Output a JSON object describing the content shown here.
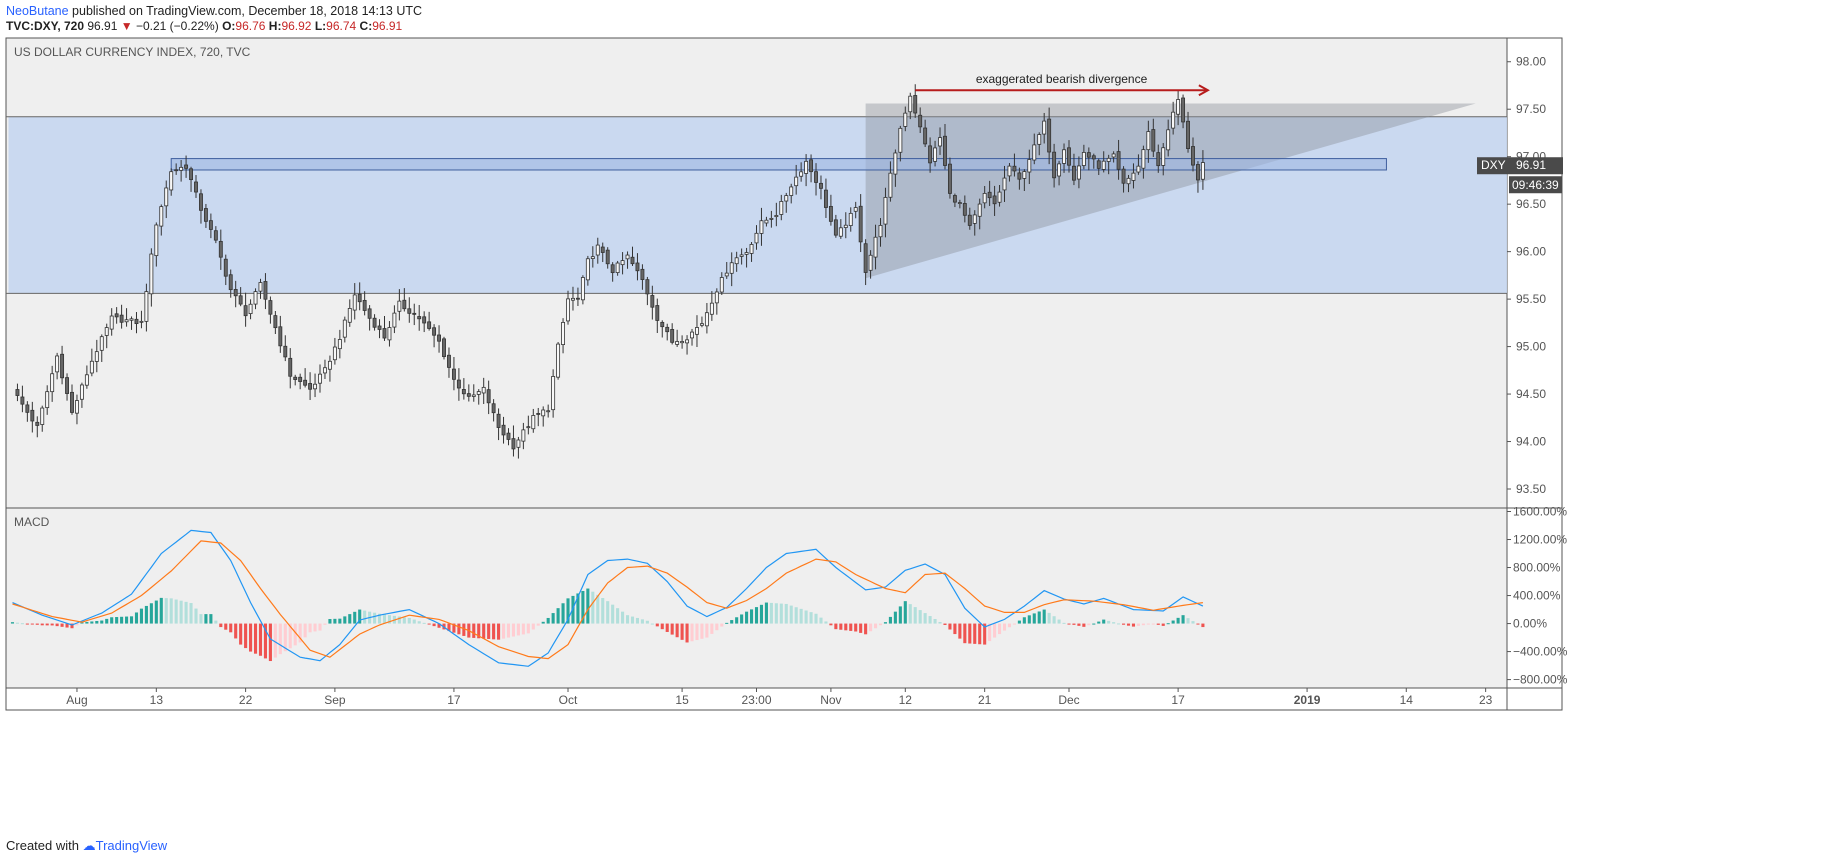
{
  "header": {
    "author": "NeoButane",
    "published_text": "published on TradingView.com, December 18, 2018 14:13 UTC",
    "symbol": "TVC:DXY, 720",
    "last": "96.91",
    "change": "−0.21 (−0.22%)",
    "o_label": "O:",
    "o_value": "96.76",
    "h_label": "H:",
    "h_value": "96.92",
    "l_label": "L:",
    "l_value": "96.74",
    "c_label": "C:",
    "c_value": "96.91"
  },
  "footer": {
    "created_with": "Created with",
    "brand": "TradingView"
  },
  "colors": {
    "background": "#efefef",
    "range_band": "#c5d6ef",
    "up_candle": "#f8f8f8",
    "down_candle": "#666666",
    "macd_line": "#2196f3",
    "signal_line": "#ff7a1a",
    "hist_pos_strong": "#26a69a",
    "hist_pos_weak": "#b2dfdb",
    "hist_neg_strong": "#ef5350",
    "hist_neg_weak": "#ffcdd2",
    "arrow": "#b71c1c"
  },
  "chart_data": [
    {
      "type": "candlestick",
      "title": "US DOLLAR CURRENCY INDEX, 720, TVC",
      "ylim": [
        93.3,
        98.25
      ],
      "y_ticks": [
        93.5,
        94.0,
        94.5,
        95.0,
        95.5,
        96.0,
        96.5,
        97.0,
        97.5,
        98.0
      ],
      "y_tick_labels": [
        "93.50",
        "94.00",
        "94.50",
        "95.00",
        "95.50",
        "96.00",
        "96.50",
        "97.00",
        "97.50",
        "98.00"
      ],
      "x_ticks": [
        {
          "label": "Aug",
          "i": 13
        },
        {
          "label": "13",
          "i": 29
        },
        {
          "label": "22",
          "i": 47
        },
        {
          "label": "Sep",
          "i": 65
        },
        {
          "label": "17",
          "i": 89
        },
        {
          "label": "Oct",
          "i": 112
        },
        {
          "label": "15",
          "i": 135
        },
        {
          "label": "23:00",
          "i": 150
        },
        {
          "label": "Nov",
          "i": 165
        },
        {
          "label": "12",
          "i": 180
        },
        {
          "label": "21",
          "i": 196
        },
        {
          "label": "Dec",
          "i": 213
        },
        {
          "label": "17",
          "i": 235
        },
        {
          "label": "2019",
          "i": 261,
          "bold": true
        },
        {
          "label": "14",
          "i": 281
        },
        {
          "label": "23",
          "i": 297
        }
      ],
      "x_count": 301,
      "close_anchors": [
        [
          0,
          94.55
        ],
        [
          5,
          94.15
        ],
        [
          9,
          94.9
        ],
        [
          12,
          94.3
        ],
        [
          16,
          94.85
        ],
        [
          20,
          95.3
        ],
        [
          26,
          95.25
        ],
        [
          29,
          96.3
        ],
        [
          32,
          96.85
        ],
        [
          35,
          96.9
        ],
        [
          38,
          96.45
        ],
        [
          41,
          96.1
        ],
        [
          44,
          95.6
        ],
        [
          47,
          95.35
        ],
        [
          50,
          95.65
        ],
        [
          53,
          95.2
        ],
        [
          56,
          94.7
        ],
        [
          60,
          94.55
        ],
        [
          63,
          94.75
        ],
        [
          66,
          95.1
        ],
        [
          69,
          95.55
        ],
        [
          72,
          95.3
        ],
        [
          75,
          95.1
        ],
        [
          78,
          95.45
        ],
        [
          82,
          95.3
        ],
        [
          86,
          95.05
        ],
        [
          89,
          94.65
        ],
        [
          92,
          94.45
        ],
        [
          95,
          94.55
        ],
        [
          98,
          94.15
        ],
        [
          101,
          93.95
        ],
        [
          105,
          94.25
        ],
        [
          108,
          94.35
        ],
        [
          110,
          95.0
        ],
        [
          112,
          95.5
        ],
        [
          114,
          95.5
        ],
        [
          116,
          95.9
        ],
        [
          118,
          96.05
        ],
        [
          121,
          95.8
        ],
        [
          124,
          95.95
        ],
        [
          127,
          95.7
        ],
        [
          130,
          95.3
        ],
        [
          133,
          95.05
        ],
        [
          136,
          95.1
        ],
        [
          139,
          95.25
        ],
        [
          142,
          95.6
        ],
        [
          145,
          95.9
        ],
        [
          148,
          96.0
        ],
        [
          151,
          96.3
        ],
        [
          154,
          96.4
        ],
        [
          157,
          96.7
        ],
        [
          160,
          96.95
        ],
        [
          163,
          96.65
        ],
        [
          166,
          96.15
        ],
        [
          170,
          96.45
        ],
        [
          172,
          95.8
        ],
        [
          175,
          96.3
        ],
        [
          177,
          96.8
        ],
        [
          179,
          97.3
        ],
        [
          181,
          97.65
        ],
        [
          183,
          97.3
        ],
        [
          185,
          96.95
        ],
        [
          187,
          97.2
        ],
        [
          189,
          96.6
        ],
        [
          191,
          96.5
        ],
        [
          193,
          96.25
        ],
        [
          196,
          96.6
        ],
        [
          198,
          96.5
        ],
        [
          201,
          96.9
        ],
        [
          203,
          96.75
        ],
        [
          206,
          97.1
        ],
        [
          208,
          97.35
        ],
        [
          210,
          96.8
        ],
        [
          212,
          97.1
        ],
        [
          214,
          96.75
        ],
        [
          216,
          97.05
        ],
        [
          219,
          96.9
        ],
        [
          222,
          97.0
        ],
        [
          224,
          96.7
        ],
        [
          227,
          96.9
        ],
        [
          229,
          97.25
        ],
        [
          231,
          96.9
        ],
        [
          233,
          97.3
        ],
        [
          235,
          97.6
        ],
        [
          237,
          97.1
        ],
        [
          239,
          96.75
        ],
        [
          240,
          96.91
        ]
      ],
      "range_band": {
        "top": 97.42,
        "bottom": 95.56,
        "i_start": 0,
        "i_end": 301
      },
      "resistance_box": {
        "top": 96.98,
        "bottom": 96.86,
        "i_start": 32,
        "i_end": 277
      },
      "triangle": {
        "points": [
          [
            172,
            97.56
          ],
          [
            295,
            97.56
          ],
          [
            172,
            95.72
          ]
        ]
      },
      "arrow": {
        "i_start": 182,
        "i_end": 241,
        "y": 97.7,
        "label": "exaggerated bearish divergence"
      },
      "last_price": {
        "symbol": "DXY",
        "value": "96.91",
        "countdown": "09:46:39"
      }
    },
    {
      "type": "macd",
      "title": "MACD",
      "ylim": [
        -920,
        1650
      ],
      "y_ticks": [
        -800,
        -400,
        0,
        400,
        800,
        1200,
        1600
      ],
      "y_tick_labels": [
        "−800.00%",
        "−400.00%",
        "0.00%",
        "400.00%",
        "800.00%",
        "1200.00%",
        "1600.00%"
      ],
      "macd_anchors": [
        [
          0,
          300
        ],
        [
          6,
          120
        ],
        [
          12,
          -20
        ],
        [
          18,
          150
        ],
        [
          24,
          420
        ],
        [
          30,
          1000
        ],
        [
          36,
          1330
        ],
        [
          40,
          1300
        ],
        [
          44,
          900
        ],
        [
          48,
          300
        ],
        [
          52,
          -220
        ],
        [
          58,
          -480
        ],
        [
          62,
          -530
        ],
        [
          66,
          -300
        ],
        [
          70,
          50
        ],
        [
          74,
          120
        ],
        [
          80,
          200
        ],
        [
          86,
          0
        ],
        [
          92,
          -300
        ],
        [
          98,
          -560
        ],
        [
          104,
          -610
        ],
        [
          108,
          -420
        ],
        [
          112,
          60
        ],
        [
          116,
          700
        ],
        [
          120,
          900
        ],
        [
          124,
          920
        ],
        [
          128,
          860
        ],
        [
          132,
          600
        ],
        [
          136,
          250
        ],
        [
          140,
          100
        ],
        [
          144,
          230
        ],
        [
          148,
          500
        ],
        [
          152,
          800
        ],
        [
          156,
          1000
        ],
        [
          162,
          1060
        ],
        [
          166,
          800
        ],
        [
          172,
          480
        ],
        [
          176,
          520
        ],
        [
          180,
          760
        ],
        [
          184,
          850
        ],
        [
          188,
          700
        ],
        [
          192,
          220
        ],
        [
          196,
          -50
        ],
        [
          200,
          60
        ],
        [
          204,
          250
        ],
        [
          208,
          470
        ],
        [
          212,
          350
        ],
        [
          216,
          280
        ],
        [
          220,
          360
        ],
        [
          226,
          200
        ],
        [
          232,
          180
        ],
        [
          236,
          380
        ],
        [
          240,
          250
        ]
      ],
      "signal_anchors": [
        [
          0,
          280
        ],
        [
          8,
          100
        ],
        [
          14,
          20
        ],
        [
          20,
          150
        ],
        [
          26,
          400
        ],
        [
          32,
          750
        ],
        [
          38,
          1180
        ],
        [
          42,
          1150
        ],
        [
          46,
          900
        ],
        [
          50,
          500
        ],
        [
          54,
          130
        ],
        [
          60,
          -380
        ],
        [
          64,
          -480
        ],
        [
          70,
          -150
        ],
        [
          74,
          -20
        ],
        [
          80,
          120
        ],
        [
          86,
          60
        ],
        [
          92,
          -100
        ],
        [
          98,
          -330
        ],
        [
          104,
          -470
        ],
        [
          108,
          -500
        ],
        [
          112,
          -300
        ],
        [
          116,
          200
        ],
        [
          120,
          580
        ],
        [
          124,
          800
        ],
        [
          128,
          820
        ],
        [
          132,
          720
        ],
        [
          136,
          520
        ],
        [
          140,
          300
        ],
        [
          144,
          220
        ],
        [
          148,
          330
        ],
        [
          152,
          500
        ],
        [
          156,
          720
        ],
        [
          162,
          920
        ],
        [
          166,
          880
        ],
        [
          170,
          700
        ],
        [
          176,
          500
        ],
        [
          180,
          440
        ],
        [
          184,
          700
        ],
        [
          188,
          720
        ],
        [
          192,
          500
        ],
        [
          196,
          250
        ],
        [
          200,
          160
        ],
        [
          204,
          160
        ],
        [
          208,
          270
        ],
        [
          212,
          340
        ],
        [
          218,
          320
        ],
        [
          224,
          270
        ],
        [
          230,
          190
        ],
        [
          236,
          260
        ],
        [
          240,
          300
        ]
      ]
    }
  ]
}
